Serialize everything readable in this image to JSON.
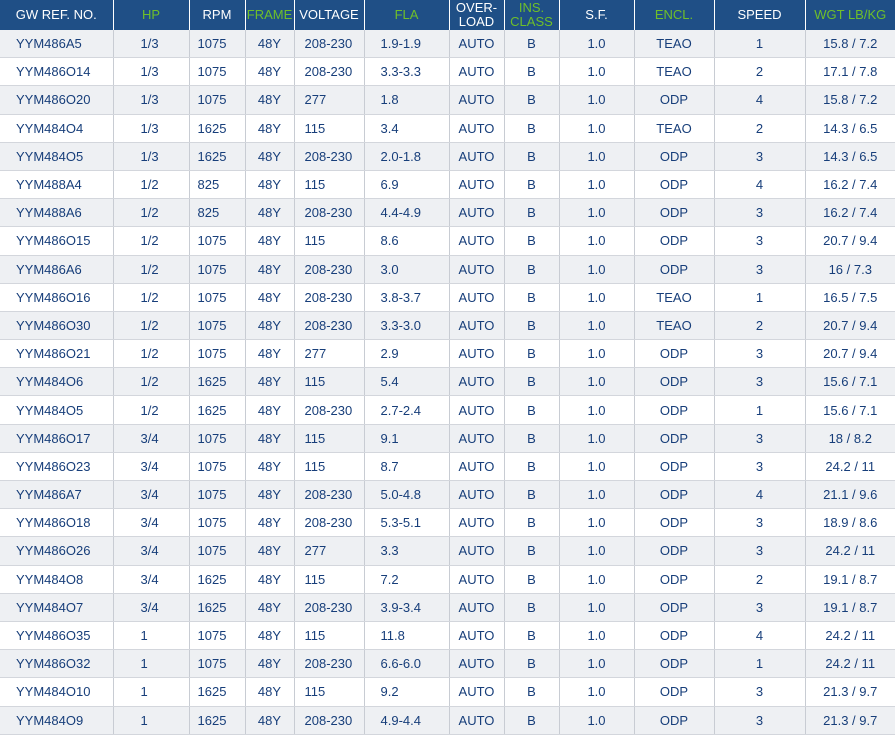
{
  "headers": [
    "GW REF. NO.",
    "HP",
    "RPM",
    "FRAME",
    "VOLTAGE",
    "FLA",
    "OVER-\nLOAD",
    "INS.\nCLASS",
    "S.F.",
    "ENCL.",
    "SPEED",
    "WGT LB/KG"
  ],
  "header_green": [
    false,
    true,
    false,
    true,
    false,
    true,
    false,
    true,
    false,
    true,
    false,
    true
  ],
  "colors": {
    "header_bg": "#1f4f86",
    "header_text": "#ffffff",
    "header_accent": "#6fbf2a",
    "cell_text": "#173e7a",
    "row_alt": "#eef0f3"
  },
  "rows": [
    [
      "YYM486A5",
      "1/3",
      "1075",
      "48Y",
      "208-230",
      "1.9-1.9",
      "AUTO",
      "B",
      "1.0",
      "TEAO",
      "1",
      "15.8 / 7.2"
    ],
    [
      "YYM486O14",
      "1/3",
      "1075",
      "48Y",
      "208-230",
      "3.3-3.3",
      "AUTO",
      "B",
      "1.0",
      "TEAO",
      "2",
      "17.1 / 7.8"
    ],
    [
      "YYM486O20",
      "1/3",
      "1075",
      "48Y",
      "277",
      "1.8",
      "AUTO",
      "B",
      "1.0",
      "ODP",
      "4",
      "15.8 / 7.2"
    ],
    [
      "YYM484O4",
      "1/3",
      "1625",
      "48Y",
      "115",
      "3.4",
      "AUTO",
      "B",
      "1.0",
      "TEAO",
      "2",
      "14.3 / 6.5"
    ],
    [
      "YYM484O5",
      "1/3",
      "1625",
      "48Y",
      "208-230",
      "2.0-1.8",
      "AUTO",
      "B",
      "1.0",
      "ODP",
      "3",
      "14.3 / 6.5"
    ],
    [
      "YYM488A4",
      "1/2",
      "825",
      "48Y",
      "115",
      "6.9",
      "AUTO",
      "B",
      "1.0",
      "ODP",
      "4",
      "16.2 / 7.4"
    ],
    [
      "YYM488A6",
      "1/2",
      "825",
      "48Y",
      "208-230",
      "4.4-4.9",
      "AUTO",
      "B",
      "1.0",
      "ODP",
      "3",
      "16.2 / 7.4"
    ],
    [
      "YYM486O15",
      "1/2",
      "1075",
      "48Y",
      "115",
      "8.6",
      "AUTO",
      "B",
      "1.0",
      "ODP",
      "3",
      "20.7 / 9.4"
    ],
    [
      "YYM486A6",
      "1/2",
      "1075",
      "48Y",
      "208-230",
      "3.0",
      "AUTO",
      "B",
      "1.0",
      "ODP",
      "3",
      "16 / 7.3"
    ],
    [
      "YYM486O16",
      "1/2",
      "1075",
      "48Y",
      "208-230",
      "3.8-3.7",
      "AUTO",
      "B",
      "1.0",
      "TEAO",
      "1",
      "16.5 / 7.5"
    ],
    [
      "YYM486O30",
      "1/2",
      "1075",
      "48Y",
      "208-230",
      "3.3-3.0",
      "AUTO",
      "B",
      "1.0",
      "TEAO",
      "2",
      "20.7 / 9.4"
    ],
    [
      "YYM486O21",
      "1/2",
      "1075",
      "48Y",
      "277",
      "2.9",
      "AUTO",
      "B",
      "1.0",
      "ODP",
      "3",
      "20.7 / 9.4"
    ],
    [
      "YYM484O6",
      "1/2",
      "1625",
      "48Y",
      "115",
      "5.4",
      "AUTO",
      "B",
      "1.0",
      "ODP",
      "3",
      "15.6 / 7.1"
    ],
    [
      "YYM484O5",
      "1/2",
      "1625",
      "48Y",
      "208-230",
      "2.7-2.4",
      "AUTO",
      "B",
      "1.0",
      "ODP",
      "1",
      "15.6 / 7.1"
    ],
    [
      "YYM486O17",
      "3/4",
      "1075",
      "48Y",
      "115",
      "9.1",
      "AUTO",
      "B",
      "1.0",
      "ODP",
      "3",
      "18 / 8.2"
    ],
    [
      "YYM486O23",
      "3/4",
      "1075",
      "48Y",
      "115",
      "8.7",
      "AUTO",
      "B",
      "1.0",
      "ODP",
      "3",
      "24.2 / 11"
    ],
    [
      "YYM486A7",
      "3/4",
      "1075",
      "48Y",
      "208-230",
      "5.0-4.8",
      "AUTO",
      "B",
      "1.0",
      "ODP",
      "4",
      "21.1 / 9.6"
    ],
    [
      "YYM486O18",
      "3/4",
      "1075",
      "48Y",
      "208-230",
      "5.3-5.1",
      "AUTO",
      "B",
      "1.0",
      "ODP",
      "3",
      "18.9 / 8.6"
    ],
    [
      "YYM486O26",
      "3/4",
      "1075",
      "48Y",
      "277",
      "3.3",
      "AUTO",
      "B",
      "1.0",
      "ODP",
      "3",
      "24.2 / 11"
    ],
    [
      "YYM484O8",
      "3/4",
      "1625",
      "48Y",
      "115",
      "7.2",
      "AUTO",
      "B",
      "1.0",
      "ODP",
      "2",
      "19.1 / 8.7"
    ],
    [
      "YYM484O7",
      "3/4",
      "1625",
      "48Y",
      "208-230",
      "3.9-3.4",
      "AUTO",
      "B",
      "1.0",
      "ODP",
      "3",
      "19.1 / 8.7"
    ],
    [
      "YYM486O35",
      "1",
      "1075",
      "48Y",
      "115",
      "11.8",
      "AUTO",
      "B",
      "1.0",
      "ODP",
      "4",
      "24.2 / 11"
    ],
    [
      "YYM486O32",
      "1",
      "1075",
      "48Y",
      "208-230",
      "6.6-6.0",
      "AUTO",
      "B",
      "1.0",
      "ODP",
      "1",
      "24.2 / 11"
    ],
    [
      "YYM484O10",
      "1",
      "1625",
      "48Y",
      "115",
      "9.2",
      "AUTO",
      "B",
      "1.0",
      "ODP",
      "3",
      "21.3 / 9.7"
    ],
    [
      "YYM484O9",
      "1",
      "1625",
      "48Y",
      "208-230",
      "4.9-4.4",
      "AUTO",
      "B",
      "1.0",
      "ODP",
      "3",
      "21.3 / 9.7"
    ]
  ]
}
